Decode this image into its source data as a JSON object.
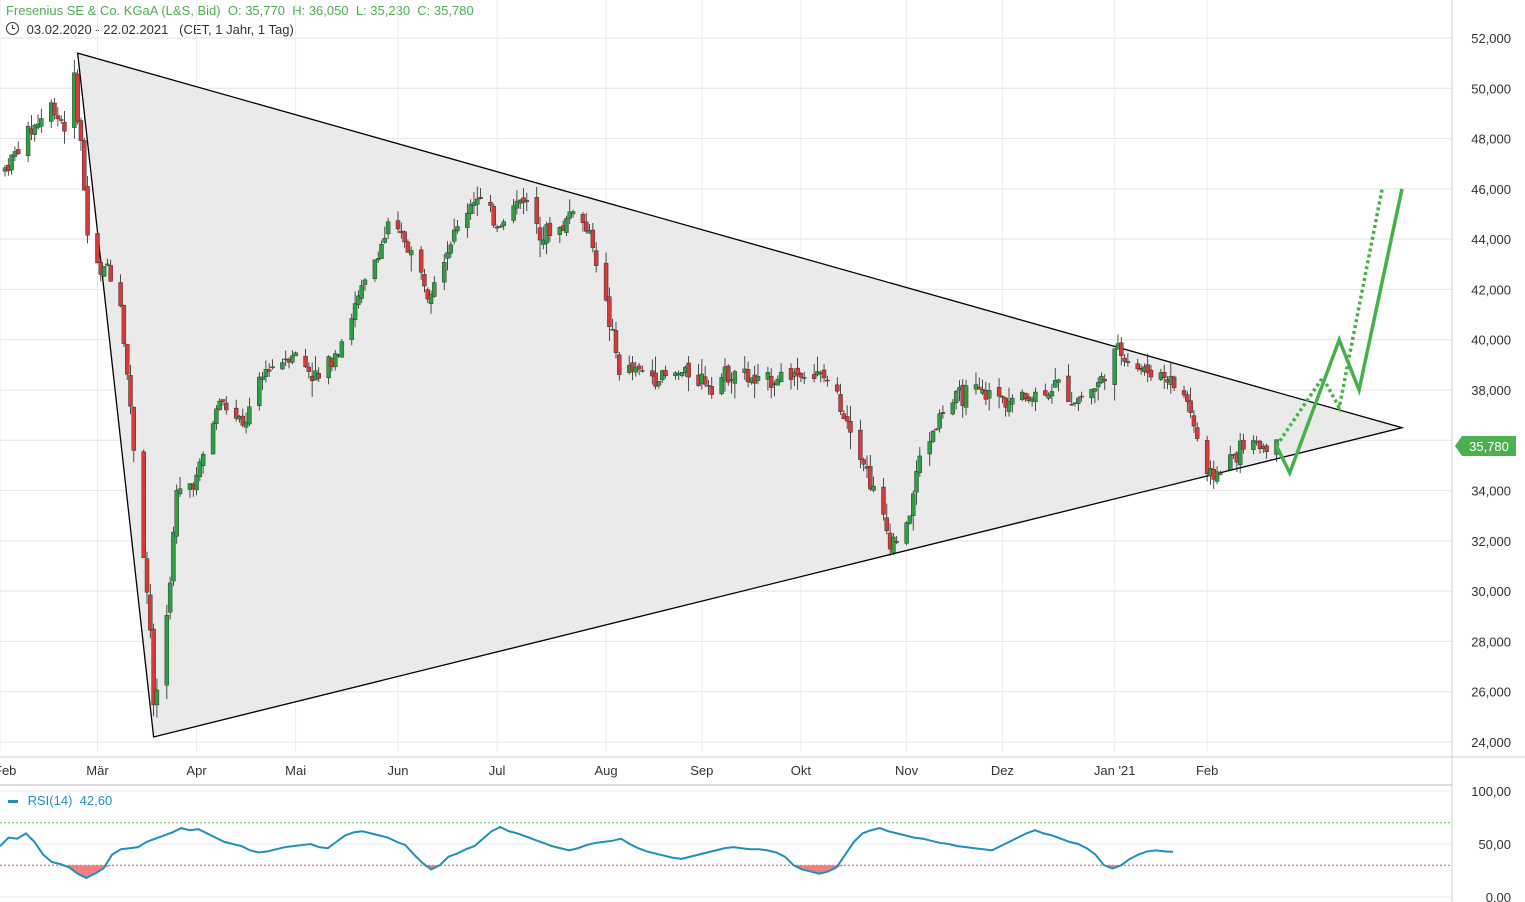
{
  "header": {
    "title": "Fresenius SE & Co. KGaA (L&S, Bid)",
    "open_label": "O:",
    "open": "35,770",
    "high_label": "H:",
    "high": "36,050",
    "low_label": "L:",
    "low": "35,230",
    "close_label": "C:",
    "close": "35,780",
    "date_range": "03.02.2020 - 22.02.2021",
    "settings": "(CET, 1 Jahr, 1 Tag)",
    "clock_icon": "clock-icon"
  },
  "chart_data": {
    "type": "candlestick",
    "y_range": [
      23500,
      53000
    ],
    "y_ticks": [
      "52,000",
      "50,000",
      "48,000",
      "46,000",
      "44,000",
      "42,000",
      "40,000",
      "38,000",
      "36,000",
      "34,000",
      "32,000",
      "30,000",
      "28,000",
      "26,000",
      "24,000"
    ],
    "x_tick_labels": [
      "Feb",
      "Mär",
      "Apr",
      "Mai",
      "Jun",
      "Jul",
      "Aug",
      "Sep",
      "Okt",
      "Nov",
      "Dez",
      "Jan '21",
      "Feb"
    ],
    "last_price_label": "35,780",
    "series_key": [
      [
        "2020-02-03",
        46800
      ],
      [
        "2020-02-10",
        48200
      ],
      [
        "2020-02-17",
        49300
      ],
      [
        "2020-02-21",
        48600
      ],
      [
        "2020-02-24",
        50200
      ],
      [
        "2020-02-26",
        47800
      ],
      [
        "2020-02-28",
        44200
      ],
      [
        "2020-03-03",
        42500
      ],
      [
        "2020-03-05",
        43000
      ],
      [
        "2020-03-09",
        41500
      ],
      [
        "2020-03-12",
        37200
      ],
      [
        "2020-03-16",
        31500
      ],
      [
        "2020-03-18",
        28500
      ],
      [
        "2020-03-19",
        25200
      ],
      [
        "2020-03-23",
        29000
      ],
      [
        "2020-03-26",
        33800
      ],
      [
        "2020-04-01",
        34500
      ],
      [
        "2020-04-08",
        37600
      ],
      [
        "2020-04-15",
        36500
      ],
      [
        "2020-04-22",
        38800
      ],
      [
        "2020-04-30",
        39500
      ],
      [
        "2020-05-08",
        38400
      ],
      [
        "2020-05-15",
        40000
      ],
      [
        "2020-05-25",
        43200
      ],
      [
        "2020-05-29",
        44400
      ],
      [
        "2020-06-03",
        44000
      ],
      [
        "2020-06-10",
        42000
      ],
      [
        "2020-06-15",
        43400
      ],
      [
        "2020-06-24",
        45700
      ],
      [
        "2020-07-01",
        44600
      ],
      [
        "2020-07-09",
        45700
      ],
      [
        "2020-07-15",
        44200
      ],
      [
        "2020-07-21",
        44500
      ],
      [
        "2020-07-24",
        45300
      ],
      [
        "2020-07-30",
        43900
      ],
      [
        "2020-08-04",
        40700
      ],
      [
        "2020-08-07",
        38800
      ],
      [
        "2020-08-14",
        38700
      ],
      [
        "2020-08-21",
        38500
      ],
      [
        "2020-08-28",
        38700
      ],
      [
        "2020-09-04",
        38300
      ],
      [
        "2020-09-11",
        38800
      ],
      [
        "2020-09-18",
        38200
      ],
      [
        "2020-09-25",
        38600
      ],
      [
        "2020-10-02",
        38700
      ],
      [
        "2020-10-09",
        38400
      ],
      [
        "2020-10-16",
        36700
      ],
      [
        "2020-10-23",
        34000
      ],
      [
        "2020-10-28",
        32000
      ],
      [
        "2020-11-02",
        32400
      ],
      [
        "2020-11-06",
        35300
      ],
      [
        "2020-11-13",
        37200
      ],
      [
        "2020-11-20",
        37900
      ],
      [
        "2020-11-27",
        37800
      ],
      [
        "2020-12-04",
        37600
      ],
      [
        "2020-12-11",
        37800
      ],
      [
        "2020-12-18",
        38200
      ],
      [
        "2020-12-23",
        37600
      ],
      [
        "2020-12-30",
        38200
      ],
      [
        "2021-01-05",
        39600
      ],
      [
        "2021-01-12",
        38800
      ],
      [
        "2021-01-19",
        38600
      ],
      [
        "2021-01-26",
        37600
      ],
      [
        "2021-02-01",
        34500
      ],
      [
        "2021-02-05",
        34800
      ],
      [
        "2021-02-12",
        35800
      ],
      [
        "2021-02-22",
        35780
      ]
    ],
    "triangle": [
      [
        "2020-02-25",
        51400
      ],
      [
        "2020-03-19",
        24200
      ],
      [
        "2021-04-01",
        36500
      ]
    ],
    "projection_solid": [
      [
        "2021-02-22",
        35780
      ],
      [
        "2021-02-26",
        34700
      ],
      [
        "2021-03-13",
        40000
      ],
      [
        "2021-03-19",
        38000
      ],
      [
        "2021-04-01",
        46000
      ]
    ],
    "projection_dotted": [
      [
        "2021-02-22",
        35780
      ],
      [
        "2021-03-08",
        38500
      ],
      [
        "2021-03-13",
        37300
      ],
      [
        "2021-03-26",
        46000
      ]
    ],
    "rsi": {
      "label": "RSI(14)",
      "value": "42,60",
      "y_range": [
        0,
        100
      ],
      "y_ticks": [
        "100,00",
        "50,00",
        "0,00"
      ],
      "overbought": 70,
      "oversold": 30,
      "values": [
        48,
        56,
        55,
        60,
        52,
        40,
        33,
        31,
        28,
        22,
        18,
        22,
        27,
        40,
        45,
        46,
        47,
        52,
        55,
        58,
        61,
        65,
        63,
        64,
        60,
        56,
        52,
        50,
        48,
        44,
        42,
        43,
        45,
        47,
        48,
        49,
        50,
        47,
        46,
        52,
        58,
        61,
        62,
        60,
        58,
        56,
        52,
        49,
        40,
        32,
        26,
        30,
        38,
        41,
        45,
        48,
        55,
        62,
        66,
        62,
        60,
        57,
        54,
        51,
        48,
        46,
        44,
        46,
        49,
        51,
        52,
        53,
        55,
        50,
        46,
        43,
        41,
        39,
        37,
        36,
        38,
        40,
        42,
        44,
        46,
        47,
        46,
        45,
        45,
        44,
        42,
        38,
        30,
        26,
        24,
        22,
        24,
        28,
        40,
        52,
        60,
        63,
        65,
        62,
        60,
        58,
        56,
        55,
        53,
        51,
        50,
        48,
        47,
        46,
        45,
        44,
        48,
        52,
        56,
        60,
        63,
        60,
        58,
        55,
        52,
        50,
        46,
        40,
        30,
        27,
        30,
        36,
        40,
        43,
        44,
        43,
        42.6
      ]
    }
  },
  "colors": {
    "up": "#2e9e44",
    "down": "#d23b3b",
    "triangle_fill": "#e6e6e6",
    "projection": "#46b14a",
    "rsi_line": "#1f8fc0",
    "rsi_oversold_fill": "#f08080",
    "label_bg": "#4caf50"
  }
}
